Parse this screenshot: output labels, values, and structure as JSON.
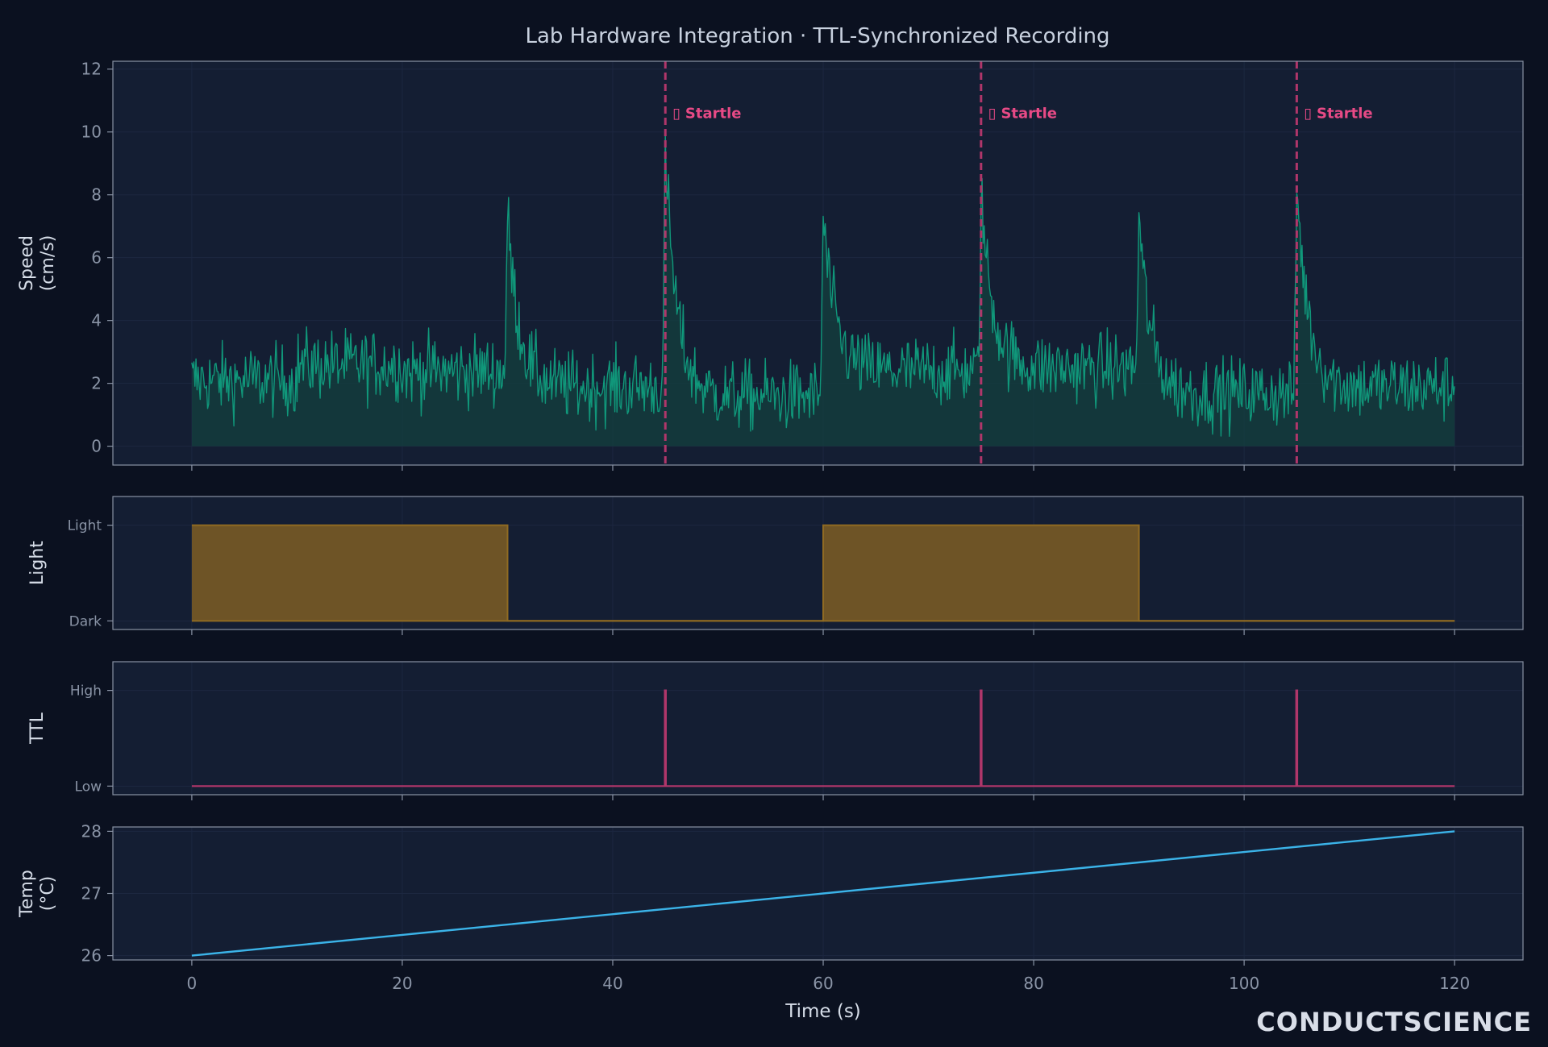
{
  "title": "Lab Hardware Integration · TTL-Synchronized Recording",
  "logo": "CONDUCTSCIENCE",
  "colors": {
    "background": "#0b1120",
    "panel": "#141e33",
    "spine": "#8892a4",
    "speed": "#10977a",
    "light": "#6e5426",
    "light_edge": "#8f6a22",
    "ttl": "#b0366a",
    "startle": "#e84a86",
    "temp": "#3bb3e8"
  },
  "chart_data": [
    {
      "id": "speed",
      "type": "line",
      "ylabel_lines": [
        "Speed",
        "(cm/s)"
      ],
      "xlim": [
        -7.5,
        126.5
      ],
      "ylim": [
        -0.6,
        12.25
      ],
      "yticks": [
        0,
        2,
        4,
        6,
        8,
        10,
        12
      ],
      "x_range": [
        0,
        120
      ],
      "sample_step": 0.1,
      "filled": true,
      "baseline_levels": [
        {
          "x": [
            0,
            10
          ],
          "mean": 2.1
        },
        {
          "x": [
            10,
            20
          ],
          "mean": 2.6
        },
        {
          "x": [
            20,
            30
          ],
          "mean": 2.4
        },
        {
          "x": [
            30,
            45
          ],
          "mean": 1.9
        },
        {
          "x": [
            45,
            60
          ],
          "mean": 1.6
        },
        {
          "x": [
            60,
            75
          ],
          "mean": 2.4
        },
        {
          "x": [
            75,
            90
          ],
          "mean": 2.5
        },
        {
          "x": [
            90,
            105
          ],
          "mean": 1.7
        },
        {
          "x": [
            105,
            120
          ],
          "mean": 1.9
        }
      ],
      "noise_amplitude": 0.55,
      "peaks": [
        {
          "x": 30.0,
          "y": 7.3
        },
        {
          "x": 45.0,
          "y": 9.3
        },
        {
          "x": 60.0,
          "y": 7.3
        },
        {
          "x": 75.0,
          "y": 8.0
        },
        {
          "x": 90.0,
          "y": 7.3
        },
        {
          "x": 105.0,
          "y": 8.3
        }
      ],
      "events": [
        {
          "x": 45,
          "label": "Startle"
        },
        {
          "x": 75,
          "label": "Startle"
        },
        {
          "x": 105,
          "label": "Startle"
        }
      ],
      "event_label_y": 10.6
    },
    {
      "id": "light",
      "type": "area",
      "ylabel_lines": [
        "Light"
      ],
      "xlim": [
        -7.5,
        126.5
      ],
      "ylim": [
        -0.09,
        1.3
      ],
      "ytick_values": [
        0,
        1
      ],
      "ytick_labels": [
        "Dark",
        "Light"
      ],
      "step_x": [
        0,
        30,
        30,
        60,
        60,
        90,
        90,
        120
      ],
      "step_y": [
        1,
        1,
        0,
        0,
        1,
        1,
        0,
        0
      ]
    },
    {
      "id": "ttl",
      "type": "line",
      "ylabel_lines": [
        "TTL"
      ],
      "xlim": [
        -7.5,
        126.5
      ],
      "ylim": [
        -0.09,
        1.3
      ],
      "ytick_values": [
        0,
        1
      ],
      "ytick_labels": [
        "Low",
        "High"
      ],
      "pulses": [
        45,
        75,
        105
      ],
      "x_range": [
        0,
        120
      ]
    },
    {
      "id": "temp",
      "type": "line",
      "ylabel_lines": [
        "Temp",
        "(°C)"
      ],
      "xlim": [
        -7.5,
        126.5
      ],
      "ylim": [
        25.93,
        28.07
      ],
      "yticks": [
        26,
        27,
        28
      ],
      "x": [
        0,
        120
      ],
      "y": [
        26,
        28
      ],
      "xticks": [
        0,
        20,
        40,
        60,
        80,
        100,
        120
      ],
      "xlabel": "Time (s)"
    }
  ]
}
